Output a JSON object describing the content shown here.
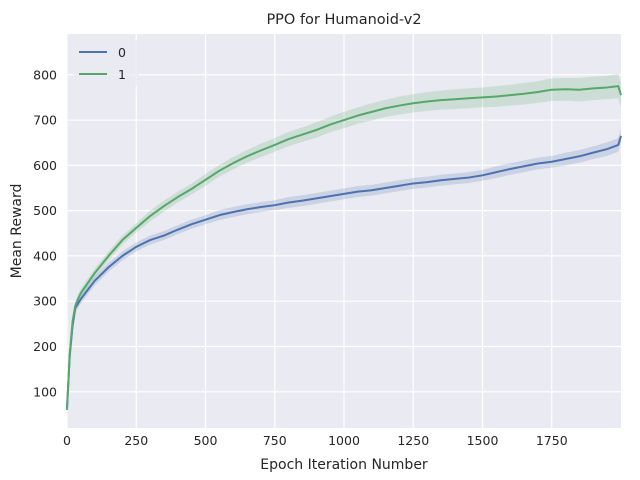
{
  "chart_data": {
    "type": "line",
    "title": "PPO for Humanoid-v2",
    "xlabel": "Epoch Iteration Number",
    "ylabel": "Mean Reward",
    "xlim": [
      0,
      2000
    ],
    "ylim": [
      20,
      890
    ],
    "xticks": [
      0,
      250,
      500,
      750,
      1000,
      1250,
      1500,
      1750
    ],
    "yticks": [
      100,
      200,
      300,
      400,
      500,
      600,
      700,
      800
    ],
    "grid": true,
    "legend_position": "top-left",
    "series": [
      {
        "name": "0",
        "color": "#4C72B0",
        "x": [
          0,
          10,
          20,
          30,
          40,
          50,
          75,
          100,
          150,
          200,
          250,
          300,
          350,
          400,
          450,
          500,
          550,
          600,
          650,
          700,
          750,
          800,
          850,
          900,
          950,
          1000,
          1050,
          1100,
          1150,
          1200,
          1250,
          1300,
          1350,
          1400,
          1450,
          1500,
          1550,
          1600,
          1650,
          1700,
          1750,
          1800,
          1850,
          1900,
          1950,
          1990,
          2000
        ],
        "values": [
          65,
          180,
          245,
          285,
          295,
          305,
          325,
          345,
          375,
          400,
          420,
          435,
          445,
          458,
          470,
          480,
          490,
          497,
          503,
          508,
          512,
          518,
          522,
          527,
          532,
          537,
          542,
          545,
          550,
          555,
          560,
          563,
          567,
          570,
          573,
          578,
          585,
          592,
          598,
          604,
          608,
          614,
          620,
          628,
          636,
          645,
          665
        ],
        "band": [
          8,
          10,
          10,
          10,
          10,
          10,
          10,
          10,
          10,
          10,
          10,
          10,
          10,
          10,
          10,
          10,
          11,
          11,
          11,
          11,
          11,
          12,
          12,
          12,
          12,
          12,
          12,
          12,
          12,
          12,
          12,
          12,
          12,
          12,
          12,
          12,
          13,
          13,
          13,
          13,
          13,
          14,
          14,
          14,
          15,
          15,
          15
        ]
      },
      {
        "name": "1",
        "color": "#55A868",
        "x": [
          0,
          10,
          20,
          30,
          40,
          50,
          75,
          100,
          150,
          200,
          250,
          300,
          350,
          400,
          450,
          500,
          550,
          600,
          650,
          700,
          750,
          800,
          850,
          900,
          950,
          1000,
          1050,
          1100,
          1150,
          1200,
          1250,
          1300,
          1350,
          1400,
          1450,
          1500,
          1550,
          1600,
          1650,
          1700,
          1750,
          1800,
          1850,
          1900,
          1950,
          1990,
          2000
        ],
        "values": [
          60,
          185,
          255,
          290,
          305,
          318,
          340,
          362,
          400,
          435,
          462,
          488,
          510,
          530,
          548,
          568,
          588,
          605,
          620,
          633,
          645,
          658,
          668,
          678,
          690,
          700,
          710,
          718,
          726,
          732,
          737,
          741,
          744,
          746,
          748,
          750,
          752,
          755,
          758,
          762,
          767,
          768,
          767,
          770,
          772,
          775,
          755
        ],
        "band": [
          8,
          10,
          10,
          10,
          10,
          10,
          10,
          10,
          10,
          10,
          10,
          12,
          12,
          12,
          12,
          13,
          13,
          14,
          14,
          15,
          15,
          16,
          16,
          17,
          17,
          18,
          18,
          19,
          19,
          20,
          20,
          21,
          21,
          22,
          22,
          22,
          23,
          23,
          24,
          24,
          25,
          25,
          26,
          26,
          26,
          27,
          27
        ]
      }
    ]
  }
}
